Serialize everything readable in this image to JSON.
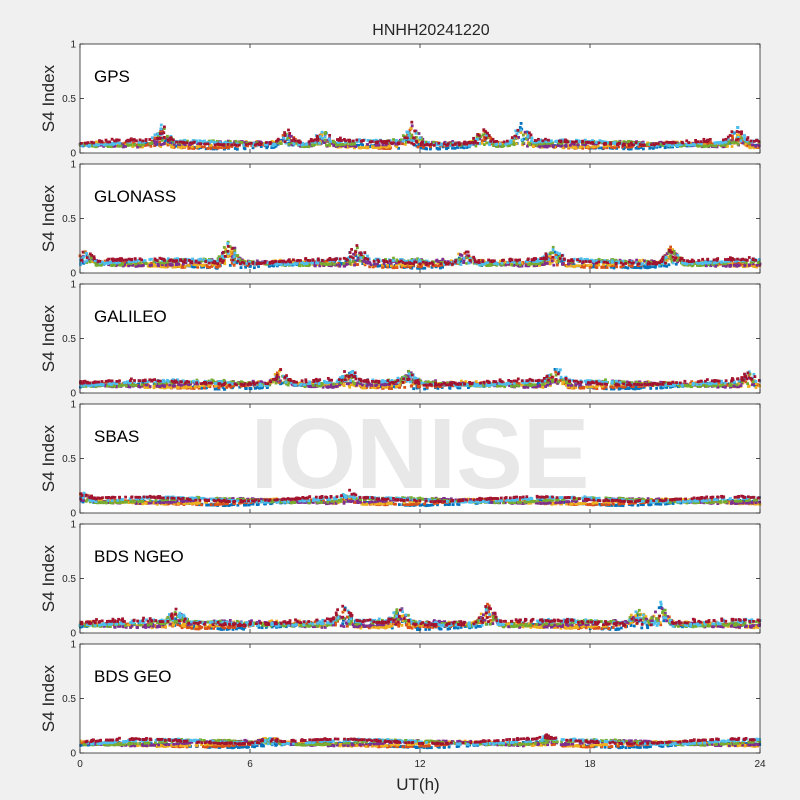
{
  "figure": {
    "title": "HNHH20241220",
    "xlabel": "UT(h)",
    "watermark": "IONISE"
  },
  "colors": {
    "background": "#f0f0f0",
    "axes_background": "#ffffff",
    "series": [
      "#0072BD",
      "#D95319",
      "#EDB120",
      "#7E2F8E",
      "#77AC30",
      "#4DBEEE",
      "#A2142F"
    ]
  },
  "chart_data": [
    {
      "type": "scatter",
      "title": "GPS",
      "ylabel": "S4 Index",
      "xlim": [
        0,
        24
      ],
      "ylim": [
        0,
        1
      ],
      "x_ticks": [
        "0",
        "6",
        "12",
        "18",
        "24"
      ],
      "y_ticks": [
        "0",
        "0.5",
        "1"
      ],
      "grid": false,
      "baseline": 0.08,
      "spread": 0.035,
      "spikes": [
        {
          "x": 2.9,
          "y": 0.25
        },
        {
          "x": 7.3,
          "y": 0.2
        },
        {
          "x": 8.6,
          "y": 0.22
        },
        {
          "x": 11.7,
          "y": 0.27
        },
        {
          "x": 14.2,
          "y": 0.23
        },
        {
          "x": 15.6,
          "y": 0.28
        },
        {
          "x": 23.2,
          "y": 0.22
        }
      ]
    },
    {
      "type": "scatter",
      "title": "GLONASS",
      "ylabel": "S4 Index",
      "xlim": [
        0,
        24
      ],
      "ylim": [
        0,
        1
      ],
      "x_ticks": [
        "0",
        "6",
        "12",
        "18",
        "24"
      ],
      "y_ticks": [
        "0",
        "0.5",
        "1"
      ],
      "grid": false,
      "baseline": 0.09,
      "spread": 0.04,
      "spikes": [
        {
          "x": 5.3,
          "y": 0.32
        },
        {
          "x": 9.8,
          "y": 0.24
        },
        {
          "x": 13.6,
          "y": 0.22
        },
        {
          "x": 16.7,
          "y": 0.23
        },
        {
          "x": 20.9,
          "y": 0.25
        },
        {
          "x": 0.2,
          "y": 0.22
        }
      ]
    },
    {
      "type": "scatter",
      "title": "GALILEO",
      "ylabel": "S4 Index",
      "xlim": [
        0,
        24
      ],
      "ylim": [
        0,
        1
      ],
      "x_ticks": [
        "0",
        "6",
        "12",
        "18",
        "24"
      ],
      "y_ticks": [
        "0",
        "0.5",
        "1"
      ],
      "grid": false,
      "baseline": 0.08,
      "spread": 0.035,
      "spikes": [
        {
          "x": 7.1,
          "y": 0.23
        },
        {
          "x": 9.5,
          "y": 0.2
        },
        {
          "x": 11.6,
          "y": 0.19
        },
        {
          "x": 16.8,
          "y": 0.25
        },
        {
          "x": 23.6,
          "y": 0.18
        }
      ]
    },
    {
      "type": "scatter",
      "title": "SBAS",
      "ylabel": "S4 Index",
      "xlim": [
        0,
        24
      ],
      "ylim": [
        0,
        1
      ],
      "x_ticks": [
        "0",
        "6",
        "12",
        "18",
        "24"
      ],
      "y_ticks": [
        "0",
        "0.5",
        "1"
      ],
      "grid": false,
      "baseline": 0.11,
      "spread": 0.02,
      "spikes": [
        {
          "x": 9.5,
          "y": 0.17
        },
        {
          "x": 0.1,
          "y": 0.2
        }
      ]
    },
    {
      "type": "scatter",
      "title": "BDS NGEO",
      "ylabel": "S4 Index",
      "xlim": [
        0,
        24
      ],
      "ylim": [
        0,
        1
      ],
      "x_ticks": [
        "0",
        "6",
        "12",
        "18",
        "24"
      ],
      "y_ticks": [
        "0",
        "0.5",
        "1"
      ],
      "grid": false,
      "baseline": 0.08,
      "spread": 0.045,
      "spikes": [
        {
          "x": 3.4,
          "y": 0.21
        },
        {
          "x": 9.3,
          "y": 0.25
        },
        {
          "x": 11.3,
          "y": 0.24
        },
        {
          "x": 14.4,
          "y": 0.28
        },
        {
          "x": 20.5,
          "y": 0.29
        },
        {
          "x": 19.7,
          "y": 0.22
        }
      ]
    },
    {
      "type": "scatter",
      "title": "BDS GEO",
      "ylabel": "S4 Index",
      "xlim": [
        0,
        24
      ],
      "ylim": [
        0,
        1
      ],
      "x_ticks": [
        "0",
        "6",
        "12",
        "18",
        "24"
      ],
      "y_ticks": [
        "0",
        "0.5",
        "1"
      ],
      "grid": false,
      "baseline": 0.09,
      "spread": 0.02,
      "spikes": [
        {
          "x": 6.7,
          "y": 0.15
        },
        {
          "x": 16.5,
          "y": 0.14
        }
      ]
    }
  ]
}
